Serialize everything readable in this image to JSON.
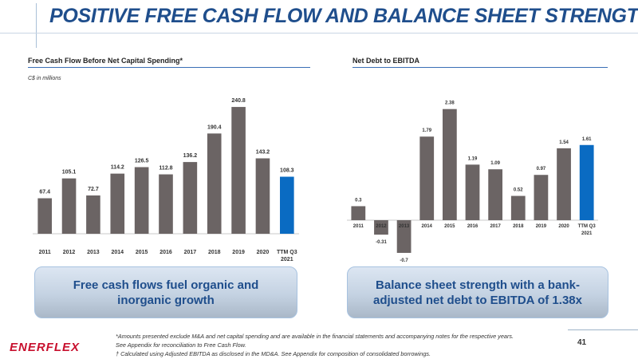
{
  "header": {
    "title": "POSITIVE FREE CASH FLOW AND BALANCE SHEET STRENGTH"
  },
  "left_section": {
    "title": "Free Cash Flow Before Net Capital Spending*",
    "units": "C$ in millions"
  },
  "right_section": {
    "title": "Net Debt to EBITDA"
  },
  "chart_data": [
    {
      "type": "bar",
      "title": "Free Cash Flow Before Net Capital Spending*",
      "ylabel": "C$ in millions",
      "categories": [
        "2011",
        "2012",
        "2013",
        "2014",
        "2015",
        "2016",
        "2017",
        "2018",
        "2019",
        "2020",
        "TTM Q3\n2021"
      ],
      "values": [
        67.4,
        105.1,
        72.7,
        114.2,
        126.5,
        112.8,
        136.2,
        190.4,
        240.8,
        143.2,
        108.3
      ],
      "value_labels": [
        "67.4",
        "105.1",
        "72.7",
        "114.2",
        "126.5",
        "112.8",
        "136.2",
        "190.4",
        "240.8",
        "143.2",
        "108.3"
      ],
      "ylim": [
        0,
        250
      ],
      "grid": false,
      "colors": {
        "default": "#6b6464",
        "highlight": "#0a6bc2"
      },
      "highlight_index": 10
    },
    {
      "type": "bar",
      "title": "Net Debt to EBITDA",
      "categories": [
        "2011",
        "2012",
        "2013",
        "2014",
        "2015",
        "2016",
        "2017",
        "2018",
        "2019",
        "2020",
        "TTM Q3\n2021"
      ],
      "values": [
        0.3,
        -0.31,
        -0.7,
        1.79,
        2.38,
        1.19,
        1.09,
        0.52,
        0.97,
        1.54,
        1.61
      ],
      "value_labels": [
        "0.3",
        "-0.31",
        "-0.7",
        "1.79",
        "2.38",
        "1.19",
        "1.09",
        "0.52",
        "0.97",
        "1.54",
        "1.61"
      ],
      "ylim": [
        -0.8,
        2.6
      ],
      "grid": false,
      "colors": {
        "default": "#6b6464",
        "highlight": "#0a6bc2"
      },
      "highlight_index": 10
    }
  ],
  "callouts": {
    "left": "Free cash flows fuel organic and inorganic growth",
    "right": "Balance sheet strength with a bank-adjusted net debt to EBITDA of 1.38x"
  },
  "footnotes": {
    "line1": "*Amounts presented exclude M&A and net capital spending and are available in the financial statements and accompanying notes for the respective years.",
    "line2": "See Appendix for reconciliation to Free Cash Flow.",
    "line3": "† Calculated using Adjusted EBITDA as disclosed in the MD&A. See Appendix for composition of consolidated borrowings."
  },
  "page_number": "41",
  "brand": {
    "logo_text": "ENERFLEX",
    "title_color": "#1f4e8c",
    "logo_color": "#c8102e"
  }
}
